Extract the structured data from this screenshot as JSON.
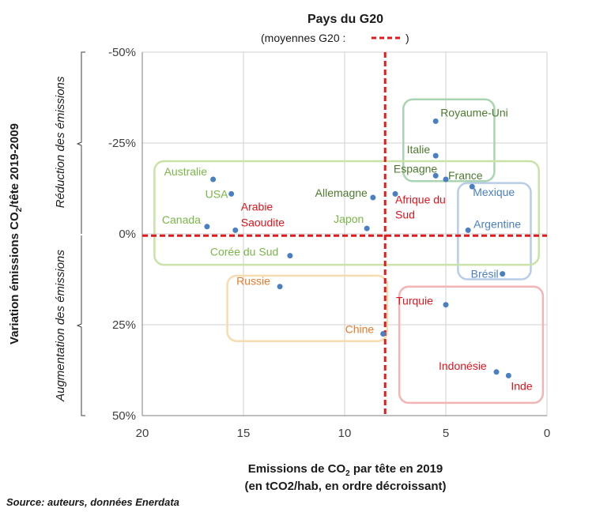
{
  "chart_data": {
    "type": "scatter",
    "title": "Pays du G20",
    "subtitle_before": "(moyennes  G20 : ",
    "subtitle_after": ")",
    "xlabel_line1_a": "Emissions de CO",
    "xlabel_line1_sub": "2",
    "xlabel_line1_b": " par tête en 2019",
    "xlabel_line2": "(en tCO2/hab, en ordre décroissant)",
    "ylabel_a": "Variation émissions CO",
    "ylabel_sub": "2",
    "ylabel_b": "/tête 2019-2009",
    "ylabel_upper": "Réduction des émissions",
    "ylabel_lower": "Augmentation des émissions",
    "xlim": [
      20,
      0
    ],
    "ylim": [
      -50,
      50
    ],
    "x_reversed": true,
    "y_reversed": true,
    "xticks": [
      {
        "value": 20,
        "label": "20"
      },
      {
        "value": 15,
        "label": "15"
      },
      {
        "value": 10,
        "label": "10"
      },
      {
        "value": 5,
        "label": "5"
      },
      {
        "value": 0,
        "label": "0"
      }
    ],
    "yticks": [
      {
        "value": -50,
        "label": "-50%"
      },
      {
        "value": -25,
        "label": "-25%"
      },
      {
        "value": 0,
        "label": "0%"
      },
      {
        "value": 25,
        "label": "25%"
      },
      {
        "value": 50,
        "label": "50%"
      }
    ],
    "grid": true,
    "reference_lines": {
      "x": 8.0,
      "y": 0.5,
      "color": "#e31a1c"
    },
    "point_color": "#4a7fc1",
    "groups": [
      {
        "name": "g-uk",
        "x": [
          2.6,
          7.1
        ],
        "y": [
          -37,
          -14.5
        ],
        "color": "#a9d5b0"
      },
      {
        "name": "g-americas",
        "x": [
          0.8,
          4.4
        ],
        "y": [
          -14,
          12.5
        ],
        "color": "#b7cde8"
      },
      {
        "name": "g-developed",
        "x": [
          0.4,
          19.4
        ],
        "y": [
          -20,
          8.5
        ],
        "color": "#c9e2a8"
      },
      {
        "name": "g-russia",
        "x": [
          7.9,
          15.8
        ],
        "y": [
          11.5,
          29.5
        ],
        "color": "#f7dcb0"
      },
      {
        "name": "g-emerging",
        "x": [
          0.2,
          7.3
        ],
        "y": [
          14.5,
          46.5
        ],
        "color": "#f4b4b4"
      }
    ],
    "points": [
      {
        "label": "Royaume-Uni",
        "x": 5.5,
        "y": -31,
        "color": "#4d7a2f"
      },
      {
        "label": "Italie",
        "x": 5.5,
        "y": -21.5,
        "color": "#4d7a2f"
      },
      {
        "label": "Espagne",
        "x": 5.5,
        "y": -16,
        "color": "#4d7a2f"
      },
      {
        "label": "France",
        "x": 5.0,
        "y": -15,
        "color": "#4d7a2f"
      },
      {
        "label": "Allemagne",
        "x": 8.6,
        "y": -10,
        "color": "#4d7a2f"
      },
      {
        "label": "Afrique du",
        "x": 7.5,
        "y": -11,
        "color": "#e0141c"
      },
      {
        "label": "Mexique",
        "x": 3.7,
        "y": -13,
        "color": "#4a7fc1"
      },
      {
        "label": "Argentine",
        "x": 3.9,
        "y": -1,
        "color": "#4a7fc1"
      },
      {
        "label": "Brésil",
        "x": 2.2,
        "y": 11,
        "color": "#4a7fc1"
      },
      {
        "label": "Australie",
        "x": 16.5,
        "y": -15,
        "color": "#7ab648"
      },
      {
        "label": "USA",
        "x": 15.6,
        "y": -11,
        "color": "#7ab648"
      },
      {
        "label": "Canada",
        "x": 16.8,
        "y": -2,
        "color": "#7ab648"
      },
      {
        "label": "Arabie",
        "x": 15.4,
        "y": -1,
        "color": "#e0141c"
      },
      {
        "label": "Japon",
        "x": 8.9,
        "y": -1.5,
        "color": "#7ab648"
      },
      {
        "label": "Corée du Sud",
        "x": 12.7,
        "y": 6,
        "color": "#7ab648"
      },
      {
        "label": "Russie",
        "x": 13.2,
        "y": 14.5,
        "color": "#e37b2c"
      },
      {
        "label": "Chine",
        "x": 8.1,
        "y": 27.5,
        "color": "#e37b2c"
      },
      {
        "label": "Turquie",
        "x": 5.0,
        "y": 19.5,
        "color": "#e0141c"
      },
      {
        "label": "Indonésie",
        "x": 2.5,
        "y": 38,
        "color": "#e0141c"
      },
      {
        "label": "Inde",
        "x": 1.9,
        "y": 39,
        "color": "#e0141c"
      }
    ],
    "extra_labels": [
      {
        "text": "Sud",
        "color": "#e0141c"
      },
      {
        "text": "Saoudite",
        "color": "#e0141c"
      }
    ]
  },
  "source": "Source: auteurs, données Enerdata"
}
